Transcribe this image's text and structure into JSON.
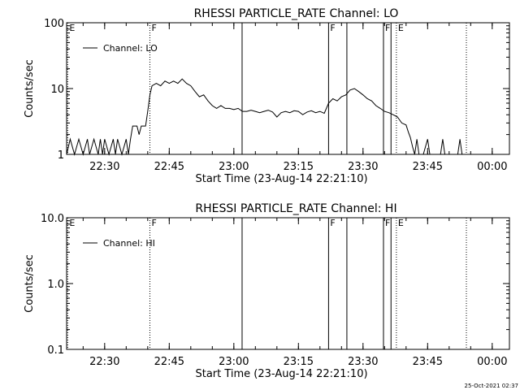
{
  "footer": {
    "timestamp": "25-Oct-2021 02:37"
  },
  "chart_data": [
    {
      "type": "line",
      "title": "RHESSI PARTICLE_RATE Channel: LO",
      "xlabel": "Start Time (23-Aug-14 22:21:10)",
      "ylabel": "Counts/sec",
      "y_scale": "log",
      "ylim": [
        1,
        100
      ],
      "yticks": [
        {
          "value": 1,
          "label": "1"
        },
        {
          "value": 10,
          "label": "10"
        },
        {
          "value": 100,
          "label": "100"
        }
      ],
      "xlim": [
        "22:21:10",
        "00:04:00"
      ],
      "xticks": [
        {
          "time": "22:30",
          "label": "22:30"
        },
        {
          "time": "22:45",
          "label": "22:45"
        },
        {
          "time": "23:00",
          "label": "23:00"
        },
        {
          "time": "23:15",
          "label": "23:15"
        },
        {
          "time": "23:30",
          "label": "23:30"
        },
        {
          "time": "23:45",
          "label": "23:45"
        },
        {
          "time": "00:00",
          "label": "00:00"
        }
      ],
      "legend": {
        "label": "Channel: LO",
        "position": "top-left"
      },
      "markers": [
        {
          "time": "22:21:25",
          "label": "E",
          "style": "dotted"
        },
        {
          "time": "22:40:30",
          "label": "F",
          "style": "dotted"
        },
        {
          "time": "23:01:55",
          "label": "",
          "style": "solid"
        },
        {
          "time": "23:22:00",
          "label": "F",
          "style": "solid"
        },
        {
          "time": "23:26:15",
          "label": "",
          "style": "solid"
        },
        {
          "time": "23:34:45",
          "label": "F",
          "style": "solid"
        },
        {
          "time": "23:36:30",
          "label": "",
          "style": "solid"
        },
        {
          "time": "23:37:45",
          "label": "E",
          "style": "dotted"
        },
        {
          "time": "23:54:00",
          "label": "",
          "style": "dotted"
        }
      ],
      "series": [
        {
          "name": "Channel: LO",
          "points": [
            [
              "22:21:10",
              1.0
            ],
            [
              "22:22:00",
              1.7
            ],
            [
              "22:23:00",
              1.0
            ],
            [
              "22:24:00",
              1.7
            ],
            [
              "22:25:00",
              1.0
            ],
            [
              "22:26:00",
              1.7
            ],
            [
              "22:26:30",
              1.0
            ],
            [
              "22:27:30",
              1.7
            ],
            [
              "22:28:30",
              1.0
            ],
            [
              "22:29:00",
              1.7
            ],
            [
              "22:29:30",
              1.0
            ],
            [
              "22:30:00",
              1.7
            ],
            [
              "22:31:00",
              1.0
            ],
            [
              "22:32:00",
              1.7
            ],
            [
              "22:32:30",
              1.0
            ],
            [
              "22:33:00",
              1.7
            ],
            [
              "22:34:00",
              1.0
            ],
            [
              "22:35:00",
              1.7
            ],
            [
              "22:35:30",
              1.0
            ],
            [
              "22:36:00",
              1.7
            ],
            [
              "22:36:30",
              2.7
            ],
            [
              "22:37:30",
              2.7
            ],
            [
              "22:38:00",
              2.0
            ],
            [
              "22:38:30",
              2.7
            ],
            [
              "22:39:30",
              2.7
            ],
            [
              "22:40:00",
              4.5
            ],
            [
              "22:40:30",
              8.0
            ],
            [
              "22:41:00",
              11.0
            ],
            [
              "22:42:00",
              12.0
            ],
            [
              "22:43:00",
              11.0
            ],
            [
              "22:44:00",
              13.0
            ],
            [
              "22:45:00",
              12.0
            ],
            [
              "22:46:00",
              13.0
            ],
            [
              "22:47:00",
              12.0
            ],
            [
              "22:48:00",
              14.0
            ],
            [
              "22:49:00",
              12.0
            ],
            [
              "22:50:00",
              11.0
            ],
            [
              "22:51:00",
              9.0
            ],
            [
              "22:52:00",
              7.5
            ],
            [
              "22:53:00",
              8.0
            ],
            [
              "22:54:00",
              6.5
            ],
            [
              "22:55:00",
              5.5
            ],
            [
              "22:56:00",
              5.0
            ],
            [
              "22:57:00",
              5.5
            ],
            [
              "22:58:00",
              5.0
            ],
            [
              "22:59:00",
              5.0
            ],
            [
              "23:00:00",
              4.8
            ],
            [
              "23:01:00",
              5.0
            ],
            [
              "23:02:00",
              4.5
            ],
            [
              "23:03:00",
              4.5
            ],
            [
              "23:04:00",
              4.7
            ],
            [
              "23:05:00",
              4.5
            ],
            [
              "23:06:00",
              4.3
            ],
            [
              "23:07:00",
              4.5
            ],
            [
              "23:08:00",
              4.7
            ],
            [
              "23:09:00",
              4.4
            ],
            [
              "23:10:00",
              3.7
            ],
            [
              "23:11:00",
              4.3
            ],
            [
              "23:12:00",
              4.5
            ],
            [
              "23:13:00",
              4.3
            ],
            [
              "23:14:00",
              4.6
            ],
            [
              "23:15:00",
              4.5
            ],
            [
              "23:16:00",
              4.0
            ],
            [
              "23:17:00",
              4.4
            ],
            [
              "23:18:00",
              4.6
            ],
            [
              "23:19:00",
              4.3
            ],
            [
              "23:20:00",
              4.5
            ],
            [
              "23:21:00",
              4.2
            ],
            [
              "23:22:00",
              6.0
            ],
            [
              "23:23:00",
              7.0
            ],
            [
              "23:24:00",
              6.5
            ],
            [
              "23:25:00",
              7.5
            ],
            [
              "23:26:00",
              8.0
            ],
            [
              "23:27:00",
              9.5
            ],
            [
              "23:28:00",
              10.0
            ],
            [
              "23:29:00",
              9.0
            ],
            [
              "23:30:00",
              8.0
            ],
            [
              "23:31:00",
              7.0
            ],
            [
              "23:32:00",
              6.5
            ],
            [
              "23:33:00",
              5.5
            ],
            [
              "23:34:00",
              5.0
            ],
            [
              "23:35:00",
              4.5
            ],
            [
              "23:36:00",
              4.3
            ],
            [
              "23:37:00",
              4.0
            ],
            [
              "23:38:00",
              3.7
            ],
            [
              "23:39:00",
              3.0
            ],
            [
              "23:40:00",
              2.8
            ],
            [
              "23:40:30",
              2.2
            ],
            [
              "23:41:00",
              1.8
            ],
            [
              "23:41:30",
              1.3
            ],
            [
              "23:42:00",
              1.0
            ],
            [
              "23:42:30",
              1.7
            ],
            [
              "23:43:00",
              1.0
            ],
            [
              "23:44:00",
              1.0
            ],
            [
              "23:45:00",
              1.7
            ],
            [
              "23:45:30",
              1.0
            ],
            [
              "23:48:00",
              1.0
            ],
            [
              "23:48:30",
              1.7
            ],
            [
              "23:49:00",
              1.0
            ],
            [
              "23:52:00",
              1.0
            ],
            [
              "23:52:30",
              1.7
            ],
            [
              "23:53:00",
              1.0
            ],
            [
              "00:04:00",
              1.0
            ]
          ]
        }
      ]
    },
    {
      "type": "line",
      "title": "RHESSI PARTICLE_RATE Channel: HI",
      "xlabel": "Start Time (23-Aug-14 22:21:10)",
      "ylabel": "Counts/sec",
      "y_scale": "log",
      "ylim": [
        0.1,
        10
      ],
      "yticks": [
        {
          "value": 0.1,
          "label": "0.1"
        },
        {
          "value": 1,
          "label": "1.0"
        },
        {
          "value": 10,
          "label": "10.0"
        }
      ],
      "xlim": [
        "22:21:10",
        "00:04:00"
      ],
      "xticks": [
        {
          "time": "22:30",
          "label": "22:30"
        },
        {
          "time": "22:45",
          "label": "22:45"
        },
        {
          "time": "23:00",
          "label": "23:00"
        },
        {
          "time": "23:15",
          "label": "23:15"
        },
        {
          "time": "23:30",
          "label": "23:30"
        },
        {
          "time": "23:45",
          "label": "23:45"
        },
        {
          "time": "00:00",
          "label": "00:00"
        }
      ],
      "legend": {
        "label": "Channel: HI",
        "position": "top-left"
      },
      "markers": [
        {
          "time": "22:21:25",
          "label": "E",
          "style": "dotted"
        },
        {
          "time": "22:40:30",
          "label": "F",
          "style": "dotted"
        },
        {
          "time": "23:01:55",
          "label": "",
          "style": "solid"
        },
        {
          "time": "23:22:00",
          "label": "F",
          "style": "solid"
        },
        {
          "time": "23:26:15",
          "label": "",
          "style": "solid"
        },
        {
          "time": "23:34:45",
          "label": "F",
          "style": "solid"
        },
        {
          "time": "23:36:30",
          "label": "",
          "style": "solid"
        },
        {
          "time": "23:37:45",
          "label": "E",
          "style": "dotted"
        },
        {
          "time": "23:54:00",
          "label": "",
          "style": "dotted"
        }
      ],
      "series": [
        {
          "name": "Channel: HI",
          "points": []
        }
      ]
    }
  ]
}
